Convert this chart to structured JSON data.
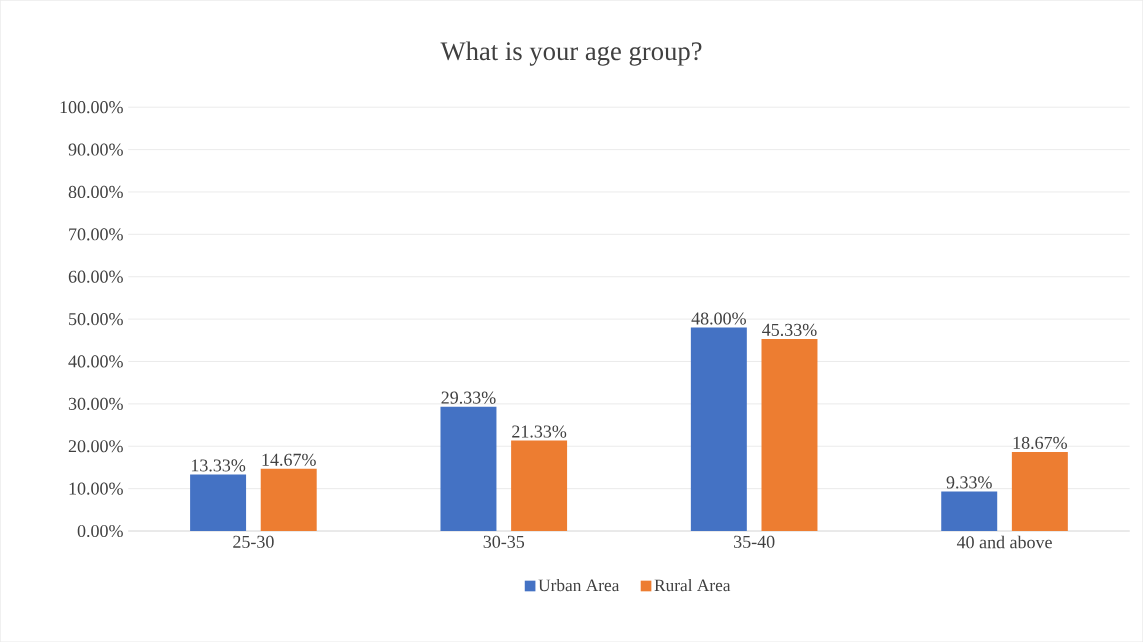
{
  "chart_data": {
    "type": "bar",
    "title": "What is your age group?",
    "categories": [
      "25-30",
      "30-35",
      "35-40",
      "40 and above"
    ],
    "series": [
      {
        "name": "Urban Area",
        "color": "#4472c4",
        "values": [
          13.33,
          29.33,
          48.0,
          9.33
        ],
        "value_labels": [
          "13.33%",
          "29.33%",
          "48.00%",
          "9.33%"
        ]
      },
      {
        "name": "Rural Area",
        "color": "#ed7d31",
        "values": [
          14.67,
          21.33,
          45.33,
          18.67
        ],
        "value_labels": [
          "14.67%",
          "21.33%",
          "45.33%",
          "18.67%"
        ]
      }
    ],
    "ylim": [
      0,
      100
    ],
    "yticks": [
      {
        "value": 0,
        "label": "0.00%"
      },
      {
        "value": 10,
        "label": "10.00%"
      },
      {
        "value": 20,
        "label": "20.00%"
      },
      {
        "value": 30,
        "label": "30.00%"
      },
      {
        "value": 40,
        "label": "40.00%"
      },
      {
        "value": 50,
        "label": "50.00%"
      },
      {
        "value": 60,
        "label": "60.00%"
      },
      {
        "value": 70,
        "label": "70.00%"
      },
      {
        "value": 80,
        "label": "80.00%"
      },
      {
        "value": 90,
        "label": "90.00%"
      },
      {
        "value": 100,
        "label": "100.00%"
      }
    ],
    "grid": "y",
    "legend": "bottom"
  }
}
